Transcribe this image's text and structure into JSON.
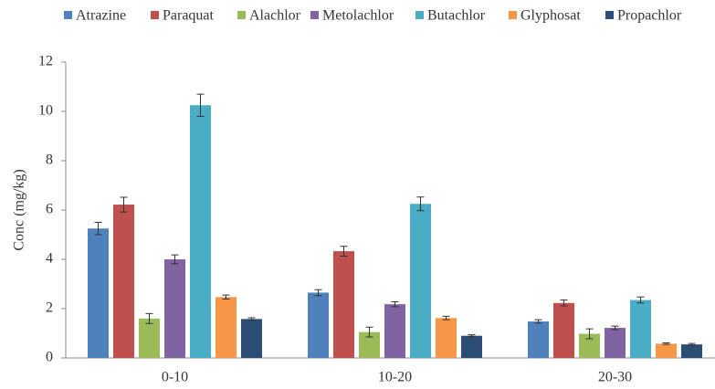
{
  "chart_data": {
    "type": "bar",
    "y_label": "Conc (mg/kg)",
    "categories": [
      "0-10",
      "10-20",
      "20-30"
    ],
    "series": [
      {
        "name": "Atrazine",
        "color": "#4f81bd",
        "values": [
          5.25,
          2.65,
          1.48
        ],
        "errors": [
          0.25,
          0.12,
          0.07
        ]
      },
      {
        "name": "Paraquat",
        "color": "#c0504d",
        "values": [
          6.22,
          4.33,
          2.23
        ],
        "errors": [
          0.3,
          0.2,
          0.12
        ]
      },
      {
        "name": "Alachlor",
        "color": "#9bbb59",
        "values": [
          1.6,
          1.05,
          0.98
        ],
        "errors": [
          0.2,
          0.2,
          0.2
        ]
      },
      {
        "name": "Metolachlor",
        "color": "#8064a2",
        "values": [
          4.0,
          2.18,
          1.22
        ],
        "errors": [
          0.18,
          0.1,
          0.07
        ]
      },
      {
        "name": "Butachlor",
        "color": "#4bacc6",
        "values": [
          10.25,
          6.25,
          2.35
        ],
        "errors": [
          0.45,
          0.28,
          0.12
        ]
      },
      {
        "name": "Glyphosat",
        "color": "#f79646",
        "values": [
          2.47,
          1.62,
          0.58
        ],
        "errors": [
          0.08,
          0.07,
          0.03
        ]
      },
      {
        "name": "Propachlor",
        "color": "#2c4d75",
        "values": [
          1.58,
          0.9,
          0.55
        ],
        "errors": [
          0.05,
          0.04,
          0.04
        ]
      }
    ],
    "ylim": [
      0,
      12
    ],
    "yticks": [
      0,
      2,
      4,
      6,
      8,
      10,
      12
    ],
    "grid": false,
    "legend": "top"
  }
}
